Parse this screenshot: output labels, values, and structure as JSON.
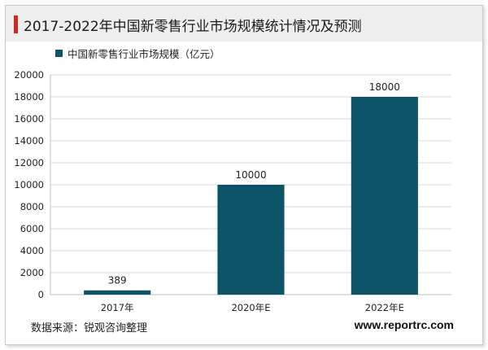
{
  "title": "2017-2022年中国新零售行业市场规模统计情况及预测",
  "source": "数据来源：锐观咨询整理",
  "website": "www.reportrc.com",
  "colors": {
    "bar": "#0e5469",
    "accent": "#d7261e",
    "title_bg": "#eeeeee"
  },
  "chart_data": {
    "type": "bar",
    "categories": [
      "2017年",
      "2020年E",
      "2022年E"
    ],
    "series": [
      {
        "name": "中国新零售行业市场规模（亿元）",
        "values": [
          389,
          10000,
          18000
        ]
      }
    ],
    "data_labels": [
      "389",
      "10000",
      "18000"
    ],
    "ylim": [
      0,
      20000
    ],
    "yticks": [
      0,
      2000,
      4000,
      6000,
      8000,
      10000,
      12000,
      14000,
      16000,
      18000,
      20000
    ],
    "grid": true,
    "legend_position": "top-left"
  }
}
